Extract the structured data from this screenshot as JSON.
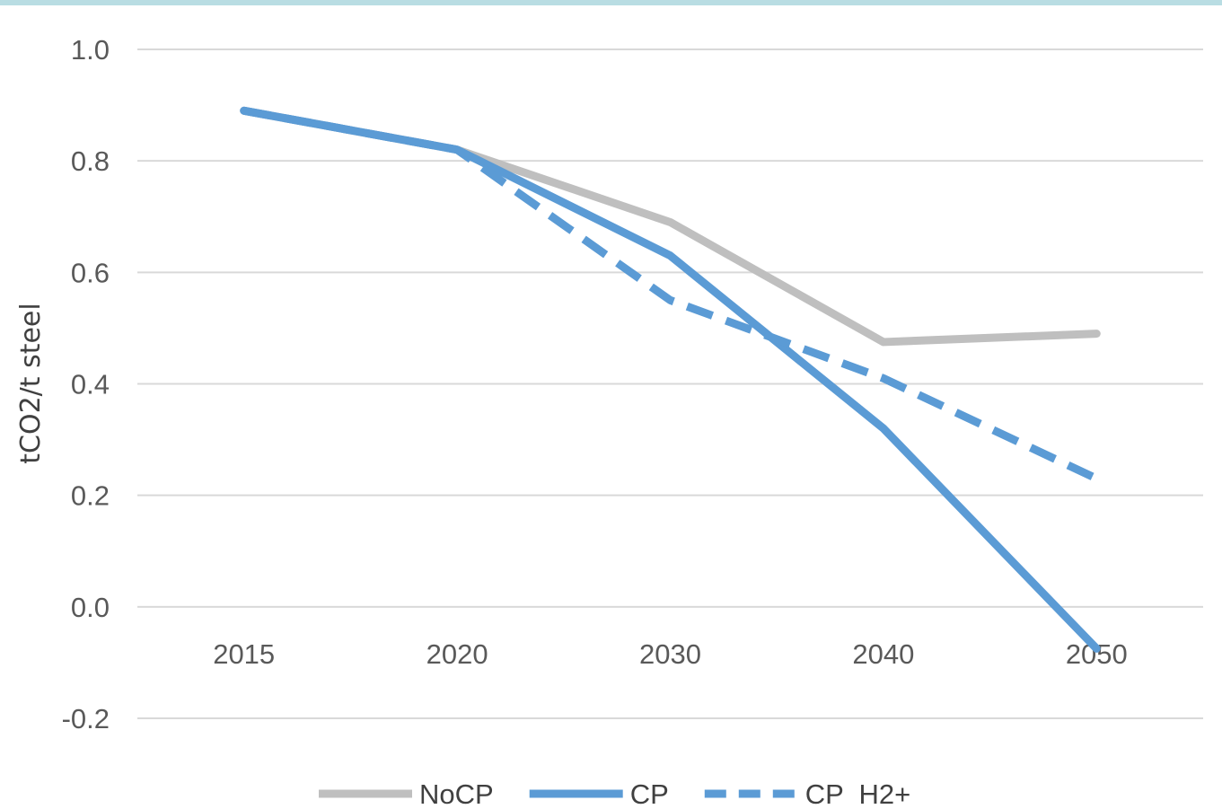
{
  "chart_data": {
    "type": "line",
    "title": "",
    "xlabel": "",
    "ylabel": "tCO2/t steel",
    "categories": [
      "2015",
      "2020",
      "2030",
      "2040",
      "2050"
    ],
    "ylim": [
      -0.2,
      1.0
    ],
    "yticks": [
      "1.0",
      "0.8",
      "0.6",
      "0.4",
      "0.2",
      "0.0",
      "-0.2"
    ],
    "grid": true,
    "legend_position": "bottom",
    "series": [
      {
        "name": "NoCP",
        "values": [
          0.89,
          0.82,
          0.69,
          0.475,
          0.49
        ],
        "color": "#bfbfbf",
        "dash": "solid"
      },
      {
        "name": "CP",
        "values": [
          0.89,
          0.82,
          0.63,
          0.32,
          -0.075
        ],
        "color": "#5b9bd5",
        "dash": "solid"
      },
      {
        "name": "CP  H2+",
        "values": [
          0.89,
          0.82,
          0.55,
          0.41,
          0.23
        ],
        "color": "#5b9bd5",
        "dash": "dashed"
      }
    ]
  }
}
